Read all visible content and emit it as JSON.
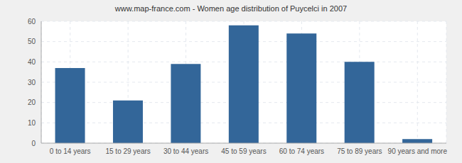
{
  "chart_data": {
    "type": "bar",
    "title": "www.map-france.com - Women age distribution of Puycelci in 2007",
    "categories": [
      "0 to 14 years",
      "15 to 29 years",
      "30 to 44 years",
      "45 to 59 years",
      "60 to 74 years",
      "75 to 89 years",
      "90 years and more"
    ],
    "values": [
      37,
      21,
      39,
      58,
      54,
      40,
      2
    ],
    "color": "#336699",
    "ylim": [
      0,
      60
    ],
    "yticks": [
      0,
      10,
      20,
      30,
      40,
      50,
      60
    ],
    "grid": true
  }
}
